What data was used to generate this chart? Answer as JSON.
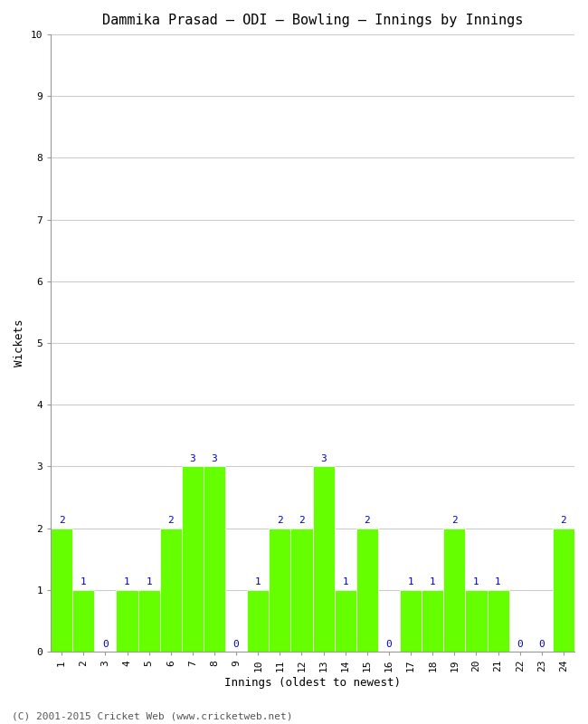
{
  "title": "Dammika Prasad – ODI – Bowling – Innings by Innings",
  "xlabel": "Innings (oldest to newest)",
  "ylabel": "Wickets",
  "xlim": [
    0.5,
    24.5
  ],
  "ylim": [
    0,
    10
  ],
  "yticks": [
    0,
    1,
    2,
    3,
    4,
    5,
    6,
    7,
    8,
    9,
    10
  ],
  "xticks": [
    1,
    2,
    3,
    4,
    5,
    6,
    7,
    8,
    9,
    10,
    11,
    12,
    13,
    14,
    15,
    16,
    17,
    18,
    19,
    20,
    21,
    22,
    23,
    24
  ],
  "innings": [
    1,
    2,
    3,
    4,
    5,
    6,
    7,
    8,
    9,
    10,
    11,
    12,
    13,
    14,
    15,
    16,
    17,
    18,
    19,
    20,
    21,
    22,
    23,
    24
  ],
  "wickets": [
    2,
    1,
    0,
    1,
    1,
    2,
    3,
    3,
    0,
    1,
    2,
    2,
    3,
    1,
    2,
    0,
    1,
    1,
    2,
    1,
    1,
    0,
    0,
    2
  ],
  "bar_color": "#66ff00",
  "bar_edge_color": "#66ff00",
  "label_color": "#0000cc",
  "background_color": "#ffffff",
  "plot_bg_color": "#ffffff",
  "grid_color": "#cccccc",
  "footer": "(C) 2001-2015 Cricket Web (www.cricketweb.net)",
  "title_fontsize": 11,
  "axis_label_fontsize": 9,
  "tick_fontsize": 8,
  "bar_label_fontsize": 8,
  "footer_fontsize": 8
}
